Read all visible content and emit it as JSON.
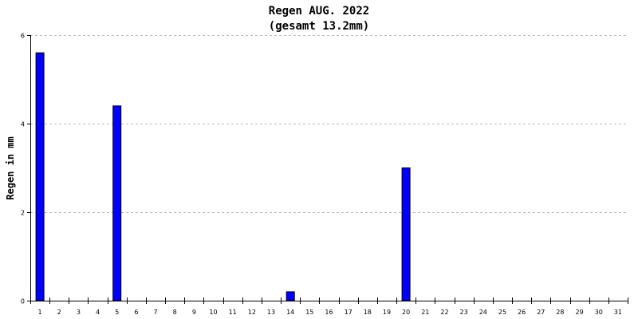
{
  "chart_data": {
    "type": "bar",
    "title": "Regen AUG. 2022",
    "subtitle": "(gesamt 13.2mm)",
    "ylabel": "Regen in mm",
    "xlabel": "",
    "ylim": [
      0,
      6
    ],
    "yticks": [
      "0",
      "2",
      "4",
      "6"
    ],
    "grid": true,
    "categories": [
      "1",
      "2",
      "3",
      "4",
      "5",
      "6",
      "7",
      "8",
      "9",
      "10",
      "11",
      "12",
      "13",
      "14",
      "15",
      "16",
      "17",
      "18",
      "19",
      "20",
      "21",
      "22",
      "23",
      "24",
      "25",
      "26",
      "27",
      "28",
      "29",
      "30",
      "31"
    ],
    "values": [
      5.6,
      0,
      0,
      0,
      4.4,
      0,
      0,
      0,
      0,
      0,
      0,
      0,
      0,
      0.2,
      0,
      0,
      0,
      0,
      0,
      3.0,
      0,
      0,
      0,
      0,
      0,
      0,
      0,
      0,
      0,
      0,
      0
    ],
    "bar_color": "#0000ff",
    "bar_edge_color": "#000000",
    "grid_color": "#bbbbbb"
  }
}
